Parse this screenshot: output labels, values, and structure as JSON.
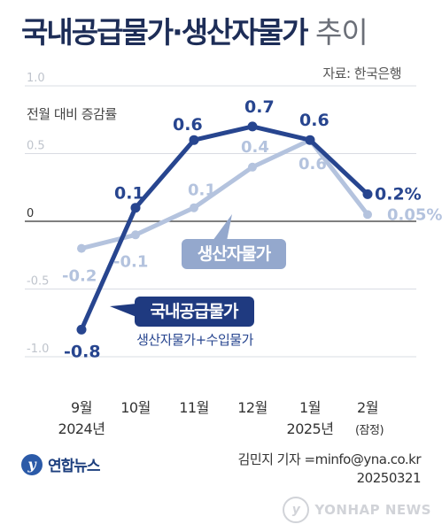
{
  "header": {
    "title_main": "국내공급물가·생산자물가",
    "title_sub": "추이",
    "source": "자료: 한국은행"
  },
  "footer": {
    "logo_text": "연합뉴스",
    "author": "김민지 기자 =minfo@yna.co.kr",
    "date": "20250321",
    "watermark_text": "YONHAP NEWS"
  },
  "colors": {
    "domestic": "#27458f",
    "producer": "#b4c3de",
    "callout_bg": "#1f3a80",
    "producer_callout_bg": "#94a8cd",
    "gridline": "#d9dce3",
    "zeroline": "#333333"
  },
  "chart_data": {
    "type": "line",
    "ylabel": "전월 대비 증감률",
    "ylim": [
      -1.0,
      1.0
    ],
    "yticks": [
      {
        "value": 1.0,
        "label": "1.0"
      },
      {
        "value": 0.5,
        "label": "0.5"
      },
      {
        "value": 0,
        "label": "0"
      },
      {
        "value": -0.5,
        "label": "-0.5"
      },
      {
        "value": -1.0,
        "label": "-1.0"
      }
    ],
    "categories": [
      {
        "line1": "9월",
        "line2": "2024년"
      },
      {
        "line1": "10월",
        "line2": ""
      },
      {
        "line1": "11월",
        "line2": ""
      },
      {
        "line1": "12월",
        "line2": ""
      },
      {
        "line1": "1월",
        "line2": "2025년"
      },
      {
        "line1": "2월",
        "line2": "(잠정)"
      }
    ],
    "series": [
      {
        "key": "producer",
        "name": "생산자물가",
        "values": [
          -0.2,
          -0.1,
          0.1,
          0.4,
          0.6,
          0.05
        ],
        "labels": [
          "-0.2",
          "-0.1",
          "0.1",
          "0.4",
          "0.6",
          "0.05%"
        ]
      },
      {
        "key": "domestic",
        "name": "국내공급물가",
        "subtitle": "생산자물가+수입물가",
        "values": [
          -0.8,
          0.1,
          0.6,
          0.7,
          0.6,
          0.2
        ],
        "labels": [
          "-0.8",
          "0.1",
          "0.6",
          "0.7",
          "0.6",
          "0.2%"
        ]
      }
    ]
  }
}
